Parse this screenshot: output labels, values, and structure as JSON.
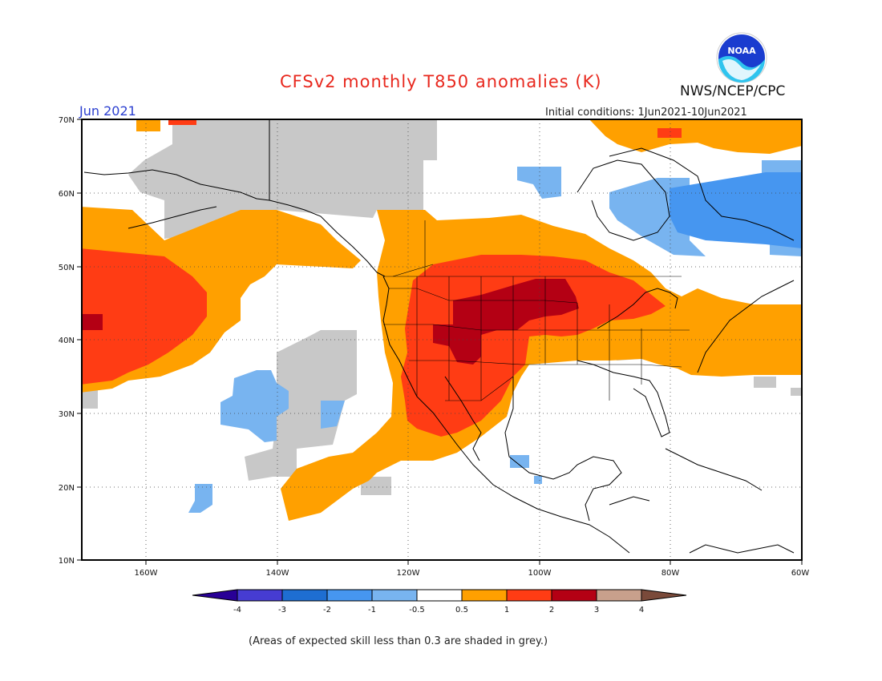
{
  "title": "CFSv2 monthly T850 anomalies (K)",
  "agency": "NWS/NCEP/CPC",
  "logo_text": "NOAA",
  "month": "Jun 2021",
  "initial_conditions": "Initial conditions: 1Jun2021-10Jun2021",
  "footnote": "(Areas of expected skill less than 0.3 are shaded in grey.)",
  "map": {
    "lat_labels": [
      "70N",
      "60N",
      "50N",
      "40N",
      "30N",
      "20N",
      "10N"
    ],
    "lon_labels": [
      "160W",
      "140W",
      "120W",
      "100W",
      "80W",
      "60W"
    ],
    "extent": {
      "lon": [
        -170,
        -60
      ],
      "lat": [
        10,
        70
      ]
    },
    "colors": {
      "grey_low_skill": "#c8c8c8",
      "blue_light": "#78b4f0",
      "blue_mid": "#4696f0",
      "orange": "#ffa000",
      "red_orange": "#ff3c14",
      "dark_red": "#b40014"
    }
  },
  "colorbar": {
    "tick_labels": [
      "-4",
      "-3",
      "-2",
      "-1",
      "-0.5",
      "0.5",
      "1",
      "2",
      "3",
      "4"
    ],
    "colors": [
      "#280096",
      "#463cd2",
      "#1e6ed2",
      "#4696f0",
      "#78b4f0",
      "#ffffff",
      "#ffa000",
      "#ff3c14",
      "#b40014",
      "#c8a08c",
      "#7a4a3a"
    ]
  }
}
